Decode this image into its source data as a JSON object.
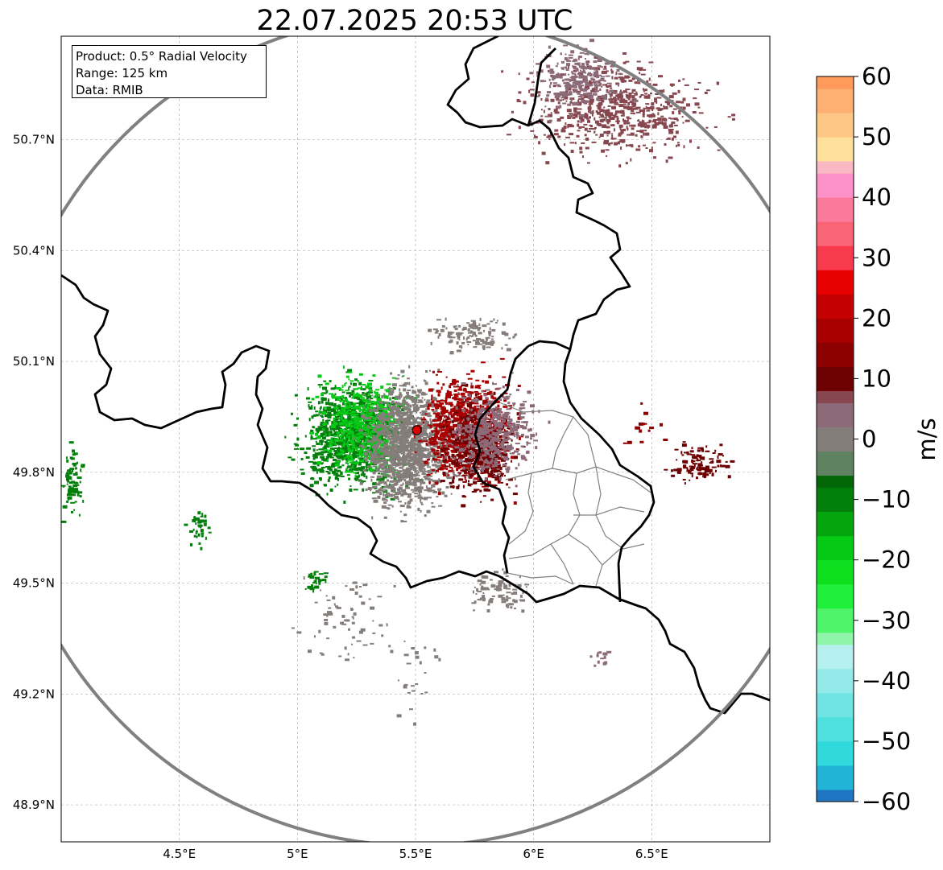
{
  "title": "22.07.2025 20:53 UTC",
  "info_box": {
    "line1": "Product: 0.5° Radial Velocity",
    "line2": "Range: 125 km",
    "line3": "Data: RMIB"
  },
  "map": {
    "lon_range": [
      4.0,
      7.0
    ],
    "lat_range": [
      48.8,
      50.98
    ],
    "lon_ticks": [
      {
        "value": 4.5,
        "label": "4.5°E"
      },
      {
        "value": 5.0,
        "label": "5°E"
      },
      {
        "value": 5.5,
        "label": "5.5°E"
      },
      {
        "value": 6.0,
        "label": "6°E"
      },
      {
        "value": 6.5,
        "label": "6.5°E"
      }
    ],
    "lat_ticks": [
      {
        "value": 50.7,
        "label": "50.7°N"
      },
      {
        "value": 50.4,
        "label": "50.4°N"
      },
      {
        "value": 50.1,
        "label": "50.1°N"
      },
      {
        "value": 49.8,
        "label": "49.8°N"
      },
      {
        "value": 49.5,
        "label": "49.5°N"
      },
      {
        "value": 49.2,
        "label": "49.2°N"
      },
      {
        "value": 48.9,
        "label": "48.9°N"
      }
    ],
    "gridlines": true,
    "radar_site": {
      "lon": 5.505,
      "lat": 49.914
    },
    "range_km": 125
  },
  "colorbar": {
    "label": "m/s",
    "min": -60,
    "max": 60,
    "ticks": [
      {
        "value": 60,
        "label": "60"
      },
      {
        "value": 50,
        "label": "50"
      },
      {
        "value": 40,
        "label": "40"
      },
      {
        "value": 30,
        "label": "30"
      },
      {
        "value": 20,
        "label": "20"
      },
      {
        "value": 10,
        "label": "10"
      },
      {
        "value": 0,
        "label": "0"
      },
      {
        "value": -10,
        "label": "−10"
      },
      {
        "value": -20,
        "label": "−20"
      },
      {
        "value": -30,
        "label": "−30"
      },
      {
        "value": -40,
        "label": "−40"
      },
      {
        "value": -50,
        "label": "−50"
      },
      {
        "value": -60,
        "label": "−60"
      }
    ],
    "bands": [
      {
        "from": -60,
        "to": -58,
        "color": "#1f77c4"
      },
      {
        "from": -58,
        "to": -54,
        "color": "#22b4d6"
      },
      {
        "from": -54,
        "to": -50,
        "color": "#2fd9dc"
      },
      {
        "from": -50,
        "to": -46,
        "color": "#4de0df"
      },
      {
        "from": -46,
        "to": -42,
        "color": "#6fe4e3"
      },
      {
        "from": -42,
        "to": -38,
        "color": "#93eae8"
      },
      {
        "from": -38,
        "to": -34,
        "color": "#b5f0ef"
      },
      {
        "from": -34,
        "to": -32,
        "color": "#8ff5a8"
      },
      {
        "from": -32,
        "to": -28,
        "color": "#4ef56b"
      },
      {
        "from": -28,
        "to": -24,
        "color": "#1ef03c"
      },
      {
        "from": -24,
        "to": -20,
        "color": "#0ee020"
      },
      {
        "from": -20,
        "to": -16,
        "color": "#06c915"
      },
      {
        "from": -16,
        "to": -12,
        "color": "#04a60f"
      },
      {
        "from": -12,
        "to": -8,
        "color": "#037f0b"
      },
      {
        "from": -8,
        "to": -6,
        "color": "#036708"
      },
      {
        "from": -6,
        "to": -2,
        "color": "#5f8360"
      },
      {
        "from": -2,
        "to": 2,
        "color": "#857d7a"
      },
      {
        "from": 2,
        "to": 6,
        "color": "#8c6a78"
      },
      {
        "from": 6,
        "to": 8,
        "color": "#87474f"
      },
      {
        "from": 8,
        "to": 12,
        "color": "#6d0000"
      },
      {
        "from": 12,
        "to": 16,
        "color": "#8c0000"
      },
      {
        "from": 16,
        "to": 20,
        "color": "#a80000"
      },
      {
        "from": 20,
        "to": 24,
        "color": "#c40000"
      },
      {
        "from": 24,
        "to": 28,
        "color": "#e60000"
      },
      {
        "from": 28,
        "to": 32,
        "color": "#f83a4e"
      },
      {
        "from": 32,
        "to": 36,
        "color": "#fa6477"
      },
      {
        "from": 36,
        "to": 40,
        "color": "#fb7a9b"
      },
      {
        "from": 40,
        "to": 44,
        "color": "#fc90c8"
      },
      {
        "from": 44,
        "to": 46,
        "color": "#f8b8c4"
      },
      {
        "from": 46,
        "to": 50,
        "color": "#fee09c"
      },
      {
        "from": 50,
        "to": 54,
        "color": "#fec786"
      },
      {
        "from": 54,
        "to": 58,
        "color": "#feb073"
      },
      {
        "from": 58,
        "to": 60,
        "color": "#fe9a5c"
      }
    ]
  },
  "colors": {
    "range_ring": "#808080",
    "border": "#000000",
    "admin_border": "#808080",
    "gridline": "#b0b0b0",
    "radar_marker": "#e00000"
  },
  "echo_regions": [
    {
      "lon": 5.24,
      "lat": 49.9,
      "spread_lon": 0.17,
      "spread_lat": 0.11,
      "count": 1100,
      "color": "#037f0b"
    },
    {
      "lon": 5.27,
      "lat": 49.93,
      "spread_lon": 0.14,
      "spread_lat": 0.1,
      "count": 500,
      "color": "#06c915"
    },
    {
      "lon": 5.46,
      "lat": 49.88,
      "spread_lon": 0.14,
      "spread_lat": 0.13,
      "count": 1300,
      "color": "#857d7a"
    },
    {
      "lon": 5.72,
      "lat": 49.92,
      "spread_lon": 0.14,
      "spread_lat": 0.11,
      "count": 900,
      "color": "#a80000"
    },
    {
      "lon": 5.76,
      "lat": 49.87,
      "spread_lon": 0.12,
      "spread_lat": 0.1,
      "count": 500,
      "color": "#6d0000"
    },
    {
      "lon": 5.82,
      "lat": 49.91,
      "spread_lon": 0.14,
      "spread_lat": 0.09,
      "count": 500,
      "color": "#8c6a78"
    },
    {
      "lon": 6.33,
      "lat": 50.79,
      "spread_lon": 0.3,
      "spread_lat": 0.1,
      "count": 650,
      "color": "#87474f"
    },
    {
      "lon": 6.19,
      "lat": 50.86,
      "spread_lon": 0.13,
      "spread_lat": 0.07,
      "count": 250,
      "color": "#8c6a78"
    },
    {
      "lon": 5.73,
      "lat": 50.18,
      "spread_lon": 0.13,
      "spread_lat": 0.04,
      "count": 120,
      "color": "#857d7a"
    },
    {
      "lon": 6.7,
      "lat": 49.83,
      "spread_lon": 0.09,
      "spread_lat": 0.04,
      "count": 110,
      "color": "#6d0000"
    },
    {
      "lon": 4.04,
      "lat": 49.77,
      "spread_lon": 0.04,
      "spread_lat": 0.07,
      "count": 80,
      "color": "#037f0b"
    },
    {
      "lon": 4.58,
      "lat": 49.65,
      "spread_lon": 0.04,
      "spread_lat": 0.04,
      "count": 35,
      "color": "#037f0b"
    },
    {
      "lon": 5.85,
      "lat": 49.48,
      "spread_lon": 0.1,
      "spread_lat": 0.05,
      "count": 90,
      "color": "#857d7a"
    },
    {
      "lon": 5.2,
      "lat": 49.4,
      "spread_lon": 0.15,
      "spread_lat": 0.1,
      "count": 70,
      "color": "#857d7a"
    },
    {
      "lon": 5.08,
      "lat": 49.51,
      "spread_lon": 0.05,
      "spread_lat": 0.03,
      "count": 25,
      "color": "#037f0b"
    },
    {
      "lon": 5.5,
      "lat": 49.28,
      "spread_lon": 0.08,
      "spread_lat": 0.12,
      "count": 25,
      "color": "#857d7a"
    },
    {
      "lon": 6.28,
      "lat": 49.3,
      "spread_lon": 0.04,
      "spread_lat": 0.02,
      "count": 12,
      "color": "#8c6a78"
    },
    {
      "lon": 6.46,
      "lat": 49.93,
      "spread_lon": 0.06,
      "spread_lat": 0.06,
      "count": 15,
      "color": "#8c0000"
    }
  ]
}
